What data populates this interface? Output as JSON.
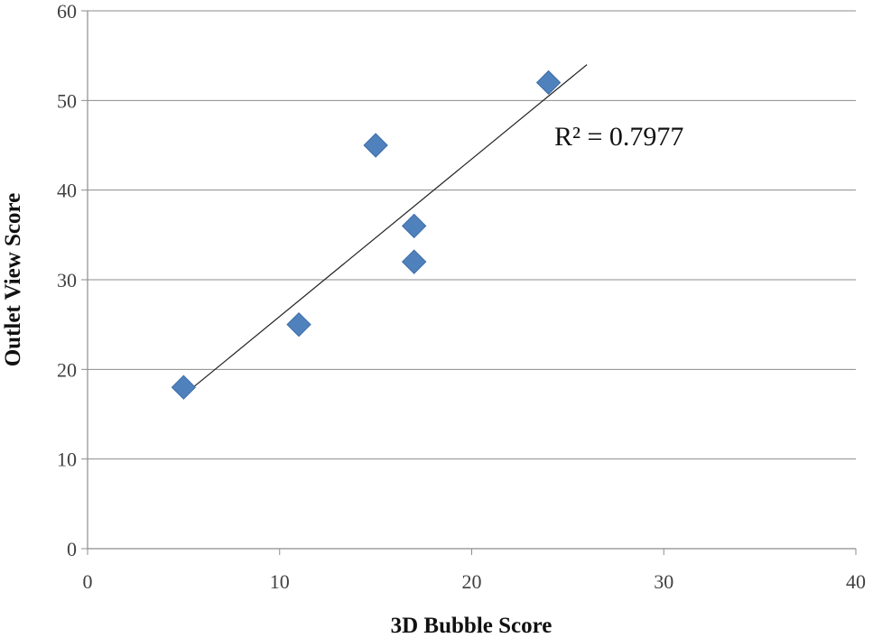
{
  "chart_data": {
    "type": "scatter",
    "title": "",
    "xlabel": "3D Bubble Score",
    "ylabel": "Outlet View Score",
    "xlim": [
      0,
      40
    ],
    "ylim": [
      0,
      60
    ],
    "x_ticks": [
      "0",
      "10",
      "20",
      "30",
      "40"
    ],
    "y_ticks": [
      "0",
      "10",
      "20",
      "30",
      "40",
      "50",
      "60"
    ],
    "grid": "horizontal",
    "marker_shape": "diamond",
    "marker_color": "#4F81BD",
    "series": [
      {
        "points": [
          {
            "x": 5,
            "y": 18
          },
          {
            "x": 11,
            "y": 25
          },
          {
            "x": 15,
            "y": 45
          },
          {
            "x": 17,
            "y": 36
          },
          {
            "x": 17,
            "y": 32
          },
          {
            "x": 24,
            "y": 52
          }
        ]
      }
    ],
    "trendline": {
      "type": "linear",
      "x_start": 5.5,
      "y_start": 18,
      "x_end": 26,
      "y_end": 54,
      "color": "#222222"
    },
    "annotations": [
      {
        "text": "R² = 0.7977",
        "x": 24.3,
        "y": 46
      }
    ]
  }
}
